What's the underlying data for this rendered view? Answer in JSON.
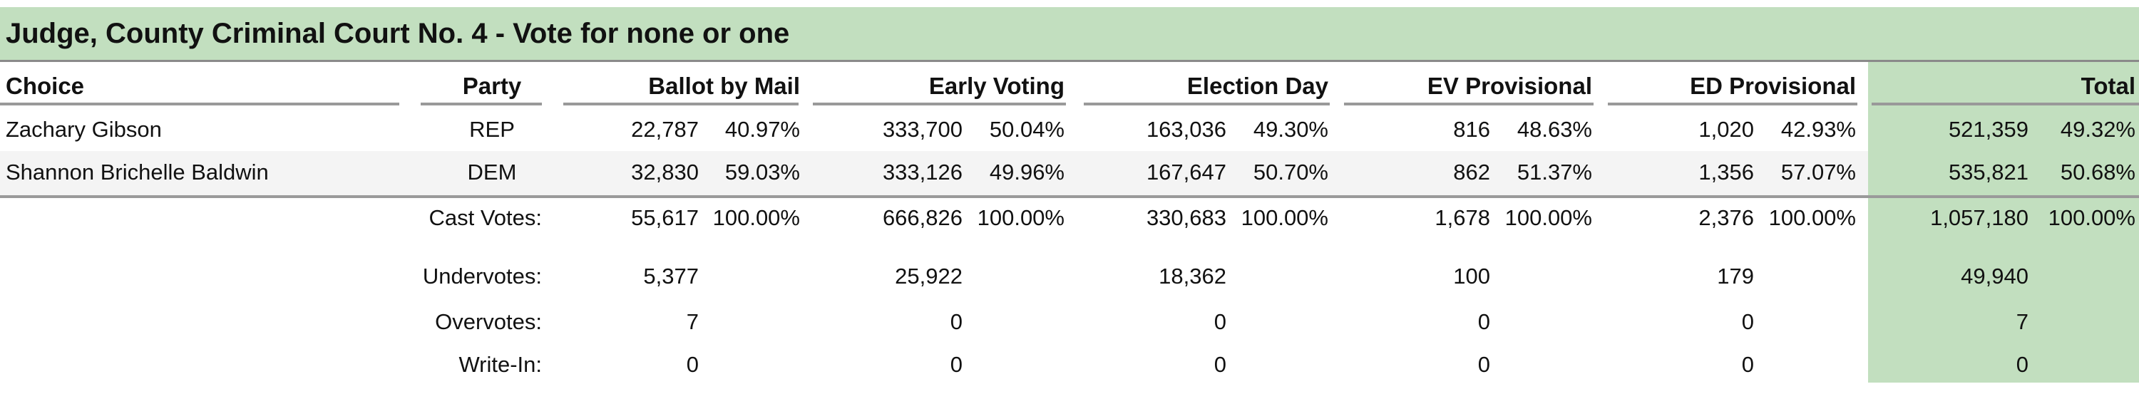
{
  "contest": {
    "title": "Judge, County Criminal Court No. 4 - Vote for none or one"
  },
  "columns": {
    "choice": "Choice",
    "party": "Party",
    "ballot_by_mail": "Ballot by Mail",
    "early_voting": "Early Voting",
    "election_day": "Election Day",
    "ev_provisional": "EV Provisional",
    "ed_provisional": "ED Provisional",
    "total": "Total"
  },
  "candidates": [
    {
      "name": "Zachary Gibson",
      "party": "REP",
      "bbm": "22,787",
      "bbm_pct": "40.97%",
      "ev": "333,700",
      "ev_pct": "50.04%",
      "ed": "163,036",
      "ed_pct": "49.30%",
      "evp": "816",
      "evp_pct": "48.63%",
      "edp": "1,020",
      "edp_pct": "42.93%",
      "total": "521,359",
      "total_pct": "49.32%"
    },
    {
      "name": "Shannon Brichelle Baldwin",
      "party": "DEM",
      "bbm": "32,830",
      "bbm_pct": "59.03%",
      "ev": "333,126",
      "ev_pct": "49.96%",
      "ed": "167,647",
      "ed_pct": "50.70%",
      "evp": "862",
      "evp_pct": "51.37%",
      "edp": "1,356",
      "edp_pct": "57.07%",
      "total": "535,821",
      "total_pct": "50.68%"
    }
  ],
  "cast_votes": {
    "label": "Cast Votes:",
    "bbm": "55,617",
    "bbm_pct": "100.00%",
    "ev": "666,826",
    "ev_pct": "100.00%",
    "ed": "330,683",
    "ed_pct": "100.00%",
    "evp": "1,678",
    "evp_pct": "100.00%",
    "edp": "2,376",
    "edp_pct": "100.00%",
    "total": "1,057,180",
    "total_pct": "100.00%"
  },
  "undervotes": {
    "label": "Undervotes:",
    "bbm": "5,377",
    "ev": "25,922",
    "ed": "18,362",
    "evp": "100",
    "edp": "179",
    "total": "49,940"
  },
  "overvotes": {
    "label": "Overvotes:",
    "bbm": "7",
    "ev": "0",
    "ed": "0",
    "evp": "0",
    "edp": "0",
    "total": "7"
  },
  "write_in": {
    "label": "Write-In:",
    "bbm": "0",
    "ev": "0",
    "ed": "0",
    "evp": "0",
    "edp": "0",
    "total": "0"
  },
  "colors": {
    "header_green": "#c2dfbf",
    "total_column_green": "#c2dfbf"
  }
}
